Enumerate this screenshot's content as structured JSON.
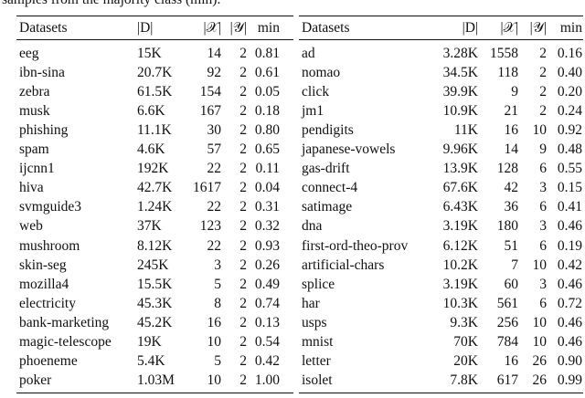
{
  "caption_fragment": "samples from the majority class (min).",
  "tables": [
    {
      "header": [
        "Datasets",
        "|D|",
        "|𝒳|",
        "|𝒴|",
        "min"
      ],
      "rows": [
        [
          "eeg",
          "15K",
          "14",
          "2",
          "0.81"
        ],
        [
          "ibn-sina",
          "20.7K",
          "92",
          "2",
          "0.61"
        ],
        [
          "zebra",
          "61.5K",
          "154",
          "2",
          "0.05"
        ],
        [
          "musk",
          "6.6K",
          "167",
          "2",
          "0.18"
        ],
        [
          "phishing",
          "11.1K",
          "30",
          "2",
          "0.80"
        ],
        [
          "spam",
          "4.6K",
          "57",
          "2",
          "0.65"
        ],
        [
          "ijcnn1",
          "192K",
          "22",
          "2",
          "0.11"
        ],
        [
          "hiva",
          "42.7K",
          "1617",
          "2",
          "0.04"
        ],
        [
          "svmguide3",
          "1.24K",
          "22",
          "2",
          "0.31"
        ],
        [
          "web",
          "37K",
          "123",
          "2",
          "0.32"
        ],
        [
          "mushroom",
          "8.12K",
          "22",
          "2",
          "0.93"
        ],
        [
          "skin-seg",
          "245K",
          "3",
          "2",
          "0.26"
        ],
        [
          "mozilla4",
          "15.5K",
          "5",
          "2",
          "0.49"
        ],
        [
          "electricity",
          "45.3K",
          "8",
          "2",
          "0.74"
        ],
        [
          "bank-marketing",
          "45.2K",
          "16",
          "2",
          "0.13"
        ],
        [
          "magic-telescope",
          "19K",
          "10",
          "2",
          "0.54"
        ],
        [
          "phoeneme",
          "5.4K",
          "5",
          "2",
          "0.42"
        ],
        [
          "poker",
          "1.03M",
          "10",
          "2",
          "1.00"
        ]
      ]
    },
    {
      "header": [
        "Datasets",
        "|D|",
        "|𝒳|",
        "|𝒴|",
        "min"
      ],
      "rows": [
        [
          "ad",
          "3.28K",
          "1558",
          "2",
          "0.16"
        ],
        [
          "nomao",
          "34.5K",
          "118",
          "2",
          "0.40"
        ],
        [
          "click",
          "39.9K",
          "9",
          "2",
          "0.20"
        ],
        [
          "jm1",
          "10.9K",
          "21",
          "2",
          "0.24"
        ],
        [
          "pendigits",
          "11K",
          "16",
          "10",
          "0.92"
        ],
        [
          "japanese-vowels",
          "9.96K",
          "14",
          "9",
          "0.48"
        ],
        [
          "gas-drift",
          "13.9K",
          "128",
          "6",
          "0.55"
        ],
        [
          "connect-4",
          "67.6K",
          "42",
          "3",
          "0.15"
        ],
        [
          "satimage",
          "6.43K",
          "36",
          "6",
          "0.41"
        ],
        [
          "dna",
          "3.19K",
          "180",
          "3",
          "0.46"
        ],
        [
          "first-ord-theo-prov",
          "6.12K",
          "51",
          "6",
          "0.19"
        ],
        [
          "artificial-chars",
          "10.2K",
          "7",
          "10",
          "0.42"
        ],
        [
          "splice",
          "3.19K",
          "60",
          "3",
          "0.46"
        ],
        [
          "har",
          "10.3K",
          "561",
          "6",
          "0.72"
        ],
        [
          "usps",
          "9.3K",
          "256",
          "10",
          "0.46"
        ],
        [
          "mnist",
          "70K",
          "784",
          "10",
          "0.46"
        ],
        [
          "letter",
          "20K",
          "16",
          "26",
          "0.90"
        ],
        [
          "isolet",
          "7.8K",
          "617",
          "26",
          "0.99"
        ]
      ]
    }
  ]
}
